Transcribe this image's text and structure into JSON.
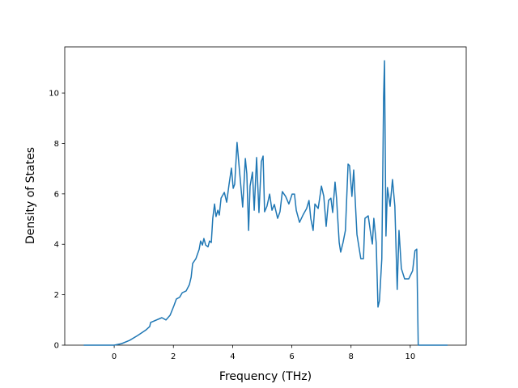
{
  "chart_data": {
    "type": "line",
    "x_label": "Frequency (THz)",
    "y_label": "Density of States",
    "color": "#1f77b4",
    "x": [
      -1.03,
      0,
      0.25,
      0.52,
      0.79,
      1.07,
      1.2,
      1.23,
      1.61,
      1.75,
      1.89,
      2.02,
      2.1,
      2.21,
      2.3,
      2.43,
      2.54,
      2.6,
      2.65,
      2.76,
      2.87,
      2.92,
      2.98,
      3.03,
      3.09,
      3.17,
      3.22,
      3.28,
      3.33,
      3.39,
      3.44,
      3.5,
      3.55,
      3.61,
      3.72,
      3.8,
      3.88,
      3.96,
      4.02,
      4.07,
      4.15,
      4.23,
      4.29,
      4.34,
      4.43,
      4.48,
      4.54,
      4.59,
      4.67,
      4.73,
      4.81,
      4.89,
      4.97,
      5.03,
      5.08,
      5.16,
      5.25,
      5.33,
      5.41,
      5.52,
      5.6,
      5.68,
      5.79,
      5.9,
      6.01,
      6.09,
      6.15,
      6.26,
      6.39,
      6.5,
      6.58,
      6.64,
      6.72,
      6.78,
      6.89,
      7.0,
      7.08,
      7.16,
      7.24,
      7.32,
      7.38,
      7.46,
      7.51,
      7.6,
      7.65,
      7.73,
      7.81,
      7.9,
      7.95,
      8.03,
      8.09,
      8.2,
      8.33,
      8.42,
      8.47,
      8.58,
      8.66,
      8.72,
      8.77,
      8.85,
      8.91,
      8.96,
      9.04,
      9.1,
      9.13,
      9.18,
      9.23,
      9.32,
      9.4,
      9.48,
      9.56,
      9.62,
      9.7,
      9.81,
      9.95,
      10.08,
      10.16,
      10.22,
      10.27,
      11.26
    ],
    "values": [
      0,
      0,
      0.06,
      0.19,
      0.38,
      0.6,
      0.74,
      0.9,
      1.09,
      1.0,
      1.19,
      1.57,
      1.83,
      1.9,
      2.08,
      2.15,
      2.4,
      2.7,
      3.24,
      3.43,
      3.8,
      4.13,
      3.97,
      4.23,
      3.97,
      3.9,
      4.13,
      4.07,
      5.03,
      5.6,
      5.1,
      5.35,
      5.16,
      5.83,
      6.06,
      5.67,
      6.38,
      7.02,
      6.22,
      6.38,
      8.04,
      6.95,
      6.15,
      5.48,
      7.4,
      6.79,
      4.55,
      6.31,
      6.86,
      5.35,
      7.44,
      5.26,
      7.28,
      7.5,
      5.29,
      5.51,
      5.99,
      5.35,
      5.58,
      5.03,
      5.29,
      6.09,
      5.9,
      5.6,
      5.99,
      5.99,
      5.35,
      4.87,
      5.19,
      5.42,
      5.74,
      5.03,
      4.55,
      5.6,
      5.42,
      6.31,
      5.9,
      4.71,
      5.74,
      5.83,
      5.26,
      6.47,
      5.83,
      4.07,
      3.69,
      4.07,
      4.55,
      7.18,
      7.12,
      5.9,
      6.95,
      4.39,
      3.43,
      3.43,
      5.03,
      5.13,
      4.46,
      4.01,
      5.03,
      4.07,
      1.51,
      1.76,
      3.43,
      9.84,
      11.28,
      4.33,
      6.25,
      5.51,
      6.57,
      5.51,
      2.21,
      4.55,
      3.04,
      2.63,
      2.63,
      2.95,
      3.75,
      3.81,
      0,
      0
    ],
    "xlim": [
      -1.67,
      11.89
    ],
    "ylim": [
      0,
      11.83
    ],
    "xticks": [
      0,
      2,
      4,
      6,
      8,
      10
    ],
    "yticks": [
      0,
      2,
      4,
      6,
      8,
      10
    ]
  }
}
